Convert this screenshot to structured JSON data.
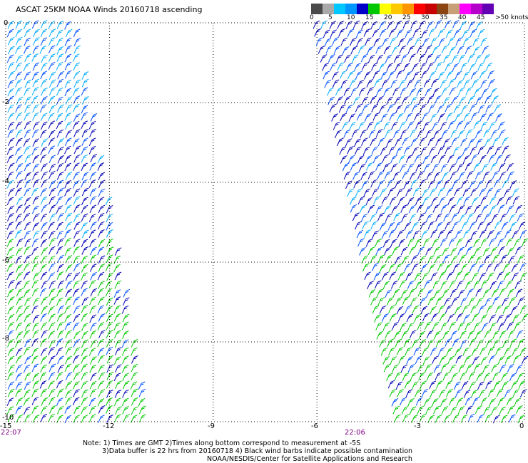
{
  "title": "ASCAT 25KM NOAA Winds 20160718 ascending",
  "color_scale": {
    "labels": [
      "0",
      "5",
      "10",
      "15",
      "20",
      "25",
      "30",
      "35",
      "40",
      "45",
      ">50 knots"
    ],
    "colors": [
      "#4a4a4a",
      "#a9a9a9",
      "#00c8ff",
      "#0096ff",
      "#0000c8",
      "#00c800",
      "#ffff00",
      "#ffc800",
      "#ff9600",
      "#ff0000",
      "#c80000",
      "#8b4513",
      "#c8a078",
      "#ff00ff",
      "#b400c8",
      "#6400b4"
    ]
  },
  "axes": {
    "x_ticks": [
      "-15",
      "-12",
      "-9",
      "-6",
      "-3",
      "0"
    ],
    "y_ticks": [
      "0",
      "-2",
      "-4",
      "-6",
      "-8",
      "-10"
    ],
    "lon_range": [
      -15,
      0
    ],
    "lat_range": [
      -10,
      0
    ],
    "grid": "dotted"
  },
  "swath_times": [
    "22:07",
    "22:06"
  ],
  "swaths": [
    {
      "name": "west",
      "lat_green_from": -5.5,
      "dominant": "blue"
    },
    {
      "name": "east",
      "lat_green_from": -5.5,
      "dominant": "blue"
    }
  ],
  "notes": {
    "line1": "Note: 1) Times are GMT 2)Times along bottom correspond to measurement at -5S",
    "line2": "3)Data buffer is 22 hrs from 20160718 4) Black wind barbs indicate possible contamination",
    "line3": "NOAA/NESDIS/Center for Satellite Applications and Research"
  },
  "barb_colors": {
    "light": "#00aaff",
    "medium": "#0050ff",
    "strong": "#0000b4",
    "green": "#00c800"
  }
}
